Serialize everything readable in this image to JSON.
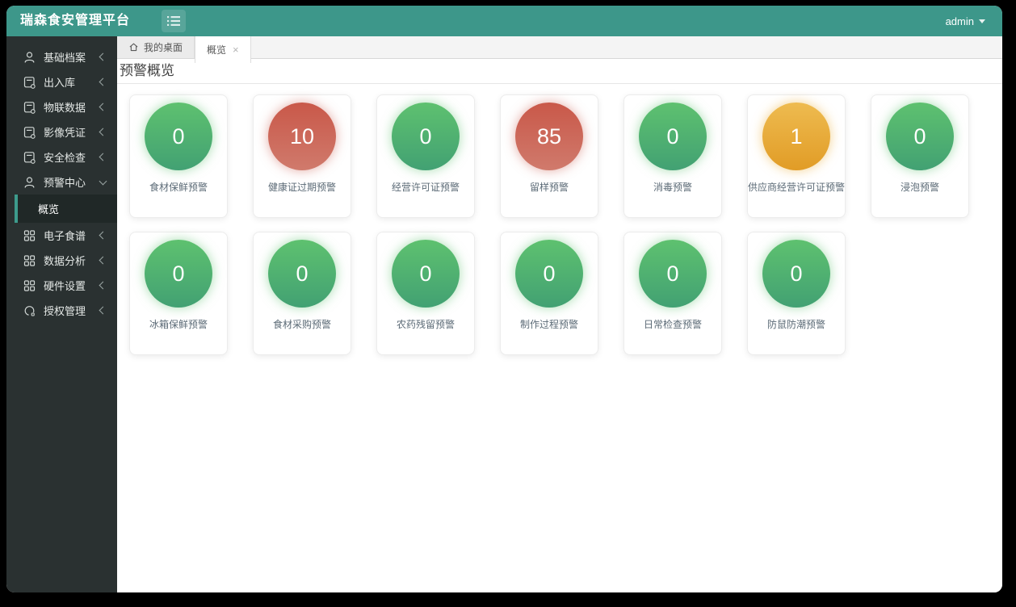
{
  "header": {
    "brand": "瑞森食安管理平台",
    "user": "admin",
    "toggle_icon": "list-menu-icon",
    "bg_color": "#3d978a"
  },
  "sidebar": {
    "bg_color": "#2a3131",
    "active_border_color": "#3d9b8c",
    "items": [
      {
        "label": "基础档案",
        "icon": "user-icon",
        "state": "collapsed"
      },
      {
        "label": "出入库",
        "icon": "form-icon",
        "state": "collapsed"
      },
      {
        "label": "物联数据",
        "icon": "form-icon",
        "state": "collapsed"
      },
      {
        "label": "影像凭证",
        "icon": "form-icon",
        "state": "collapsed"
      },
      {
        "label": "安全检查",
        "icon": "form-icon",
        "state": "collapsed"
      },
      {
        "label": "预警中心",
        "icon": "user-icon",
        "state": "expanded",
        "children": [
          {
            "label": "概览",
            "active": true
          }
        ]
      },
      {
        "label": "电子食谱",
        "icon": "grid-icon",
        "state": "collapsed"
      },
      {
        "label": "数据分析",
        "icon": "grid-icon",
        "state": "collapsed"
      },
      {
        "label": "硬件设置",
        "icon": "grid-icon",
        "state": "collapsed"
      },
      {
        "label": "授权管理",
        "icon": "circle-auth-icon",
        "state": "collapsed"
      }
    ]
  },
  "tabs": [
    {
      "label": "我的桌面",
      "icon": "home-icon",
      "active": false,
      "closable": false
    },
    {
      "label": "概览",
      "icon": null,
      "active": true,
      "closable": true,
      "close_icon": "close-icon"
    }
  ],
  "page": {
    "title": "预警概览"
  },
  "cards": [
    {
      "label": "食材保鲜预警",
      "value": "0",
      "status": "green"
    },
    {
      "label": "健康证过期预警",
      "value": "10",
      "status": "red"
    },
    {
      "label": "经营许可证预警",
      "value": "0",
      "status": "green"
    },
    {
      "label": "留样预警",
      "value": "85",
      "status": "red"
    },
    {
      "label": "消毒预警",
      "value": "0",
      "status": "green"
    },
    {
      "label": "供应商经营许可证预警",
      "value": "1",
      "status": "orange"
    },
    {
      "label": "浸泡预警",
      "value": "0",
      "status": "green"
    },
    {
      "label": "冰箱保鲜预警",
      "value": "0",
      "status": "green"
    },
    {
      "label": "食材采购预警",
      "value": "0",
      "status": "green"
    },
    {
      "label": "农药残留预警",
      "value": "0",
      "status": "green"
    },
    {
      "label": "制作过程预警",
      "value": "0",
      "status": "green"
    },
    {
      "label": "日常检查预警",
      "value": "0",
      "status": "green"
    },
    {
      "label": "防鼠防潮预警",
      "value": "0",
      "status": "green"
    }
  ],
  "palette": {
    "green": {
      "top": "#5ec16f",
      "bottom": "#42a173",
      "glow": "rgba(94,193,111,0.55)"
    },
    "red": {
      "top": "#c95849",
      "bottom": "#d07a6c",
      "glow": "rgba(201,88,73,0.5)"
    },
    "orange": {
      "top": "#eebb50",
      "bottom": "#e19c26",
      "glow": "rgba(233,171,49,0.55)"
    }
  }
}
